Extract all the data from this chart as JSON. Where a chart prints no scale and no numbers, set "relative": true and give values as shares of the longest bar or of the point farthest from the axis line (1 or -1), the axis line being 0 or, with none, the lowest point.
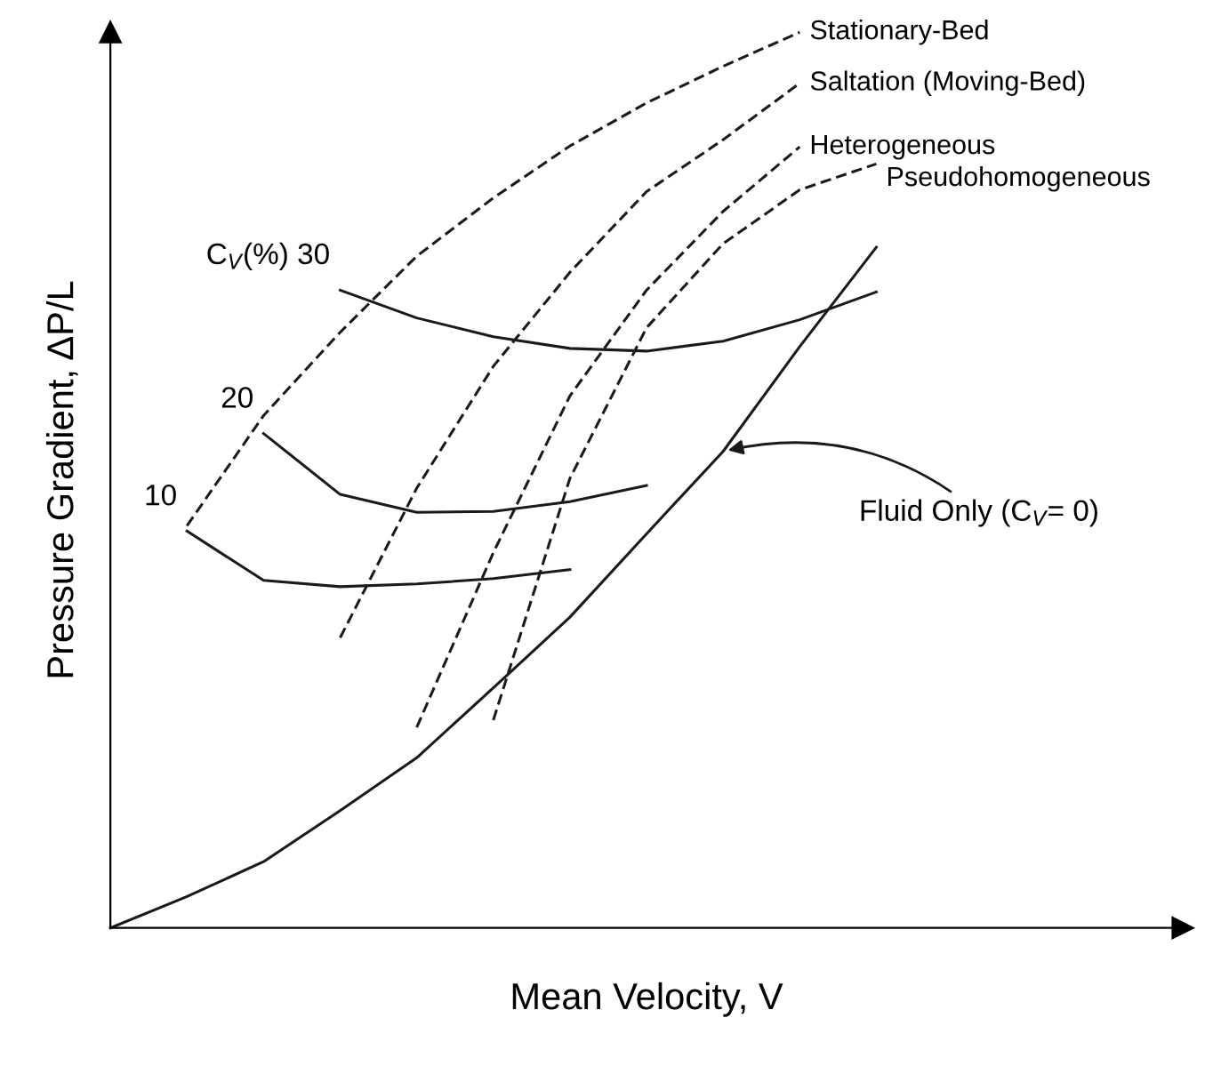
{
  "chart_data": {
    "type": "line",
    "relative": true,
    "xlabel": "Mean Velocity, V",
    "ylabel": "Pressure Gradient, ΔP/L",
    "marker": "none",
    "legend": false,
    "categories": [
      null,
      null,
      null,
      null,
      null,
      null,
      null,
      null,
      null,
      null,
      null
    ],
    "series": [
      {
        "color": "#1a1a1a",
        "line_style": "solid",
        "values": [
          0,
          0.035,
          0.074,
          0.131,
          0.19,
          0.268,
          0.347,
          0.44,
          0.532,
          0.649,
          0.76
        ]
      },
      {
        "name": "10",
        "color": "#1a1a1a",
        "line_style": "solid",
        "values": [
          null,
          0.443,
          0.388,
          0.381,
          0.384,
          0.39,
          0.4,
          null,
          null,
          null,
          null
        ]
      },
      {
        "name": "20",
        "color": "#1a1a1a",
        "line_style": "solid",
        "values": [
          null,
          null,
          0.552,
          0.484,
          0.464,
          0.465,
          0.476,
          0.494,
          null,
          null,
          null
        ]
      },
      {
        "name": "C$_{V}$(%) 30",
        "color": "#1a1a1a",
        "line_style": "solid",
        "values": [
          null,
          null,
          null,
          0.712,
          0.681,
          0.66,
          0.647,
          0.644,
          0.655,
          0.679,
          0.71
        ]
      },
      {
        "name": "Stationary-Bed",
        "color": "#1a1a1a",
        "line_style": "dashed",
        "values": [
          null,
          0.449,
          0.572,
          0.665,
          0.75,
          0.815,
          0.873,
          0.921,
          0.962,
          1.0,
          null
        ]
      },
      {
        "name": "Saltation (Moving-Bed)",
        "color": "#1a1a1a",
        "line_style": "dashed",
        "values": [
          null,
          null,
          null,
          0.324,
          0.491,
          0.627,
          0.732,
          0.822,
          0.88,
          0.943,
          null
        ]
      },
      {
        "name": "Heterogeneous",
        "color": "#1a1a1a",
        "line_style": "dashed",
        "values": [
          null,
          null,
          null,
          null,
          0.224,
          0.419,
          0.594,
          0.712,
          0.8,
          0.872,
          null
        ]
      },
      {
        "name": "Pseudohomogeneous",
        "color": "#1a1a1a",
        "line_style": "dashed",
        "values": [
          null,
          null,
          null,
          null,
          null,
          0.232,
          0.502,
          0.67,
          0.764,
          0.824,
          0.853
        ]
      }
    ],
    "annotations": [
      "Fluid Only (C$_{V}$= 0)"
    ]
  }
}
